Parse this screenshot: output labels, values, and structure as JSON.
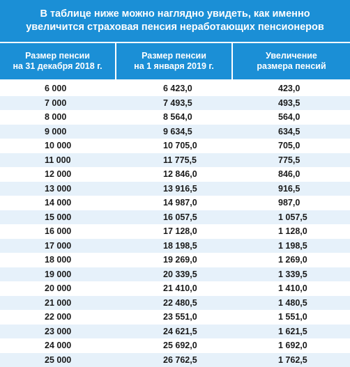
{
  "title": {
    "line1": "В таблице ниже можно наглядно увидеть, как именно",
    "line2": "увеличится страховая пенсия неработающих пенсионеров"
  },
  "columns": [
    {
      "line1": "Размер пенсии",
      "line2": "на 31 декабря 2018 г."
    },
    {
      "line1": "Размер пенсии",
      "line2": "на 1 января 2019 г."
    },
    {
      "line1": "Увеличение",
      "line2": "размера пенсий"
    }
  ],
  "rows": [
    [
      "6 000",
      "6 423,0",
      "423,0"
    ],
    [
      "7 000",
      "7 493,5",
      "493,5"
    ],
    [
      "8 000",
      "8 564,0",
      "564,0"
    ],
    [
      "9 000",
      "9 634,5",
      "634,5"
    ],
    [
      "10 000",
      "10 705,0",
      "705,0"
    ],
    [
      "11 000",
      "11 775,5",
      "775,5"
    ],
    [
      "12 000",
      "12 846,0",
      "846,0"
    ],
    [
      "13 000",
      "13 916,5",
      "916,5"
    ],
    [
      "14 000",
      "14 987,0",
      "987,0"
    ],
    [
      "15 000",
      "16 057,5",
      "1 057,5"
    ],
    [
      "16 000",
      "17 128,0",
      "1 128,0"
    ],
    [
      "17 000",
      "18 198,5",
      "1 198,5"
    ],
    [
      "18 000",
      "19 269,0",
      "1 269,0"
    ],
    [
      "19 000",
      "20 339,5",
      "1 339,5"
    ],
    [
      "20 000",
      "21 410,0",
      "1 410,0"
    ],
    [
      "21 000",
      "22 480,5",
      "1 480,5"
    ],
    [
      "22 000",
      "23 551,0",
      "1 551,0"
    ],
    [
      "23 000",
      "24 621,5",
      "1 621,5"
    ],
    [
      "24 000",
      "25 692,0",
      "1 692,0"
    ],
    [
      "25 000",
      "26 762,5",
      "1 762,5"
    ]
  ],
  "colors": {
    "header_bg": "#1b8fd6",
    "alt_row_bg": "#e6f1fa",
    "text": "#1a1a1a"
  }
}
